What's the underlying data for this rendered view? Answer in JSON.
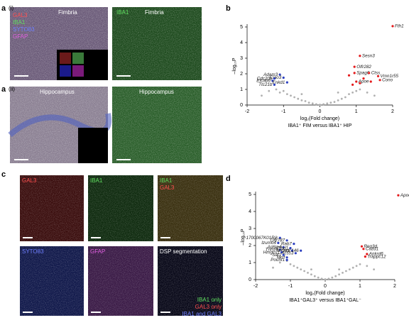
{
  "panels": {
    "a1": {
      "letter": "a",
      "sub": "(i)",
      "left_channels": [
        "GAL3",
        "IBA1",
        "SYTO83",
        "GFAP"
      ],
      "left_region": "Fimbria",
      "right_channel": "IBA1",
      "right_region": "Fimbria"
    },
    "a2": {
      "letter": "a",
      "sub": "(ii)",
      "left_region": "Hippocampus",
      "right_region": "Hippocampus"
    },
    "b": {
      "letter": "b"
    },
    "c": {
      "letter": "c",
      "tiles": [
        [
          "GAL3"
        ],
        [
          "IBA1"
        ],
        [
          "IBA1",
          "GAL3"
        ],
        [
          "SYTO83"
        ],
        [
          "GFAP"
        ],
        [
          "DSP segmentation"
        ]
      ],
      "legend": [
        "IBA1 only",
        "GAL3 only",
        "IBA1 and GAL3"
      ]
    },
    "d": {
      "letter": "d"
    }
  },
  "chart_data": [
    {
      "type": "scatter",
      "xlabel": "log₂(Fold change)",
      "ylabel": "–log₁₀P",
      "subtitle": "IBA1⁺ FIM versus IBA1⁺ HIP",
      "xlim": [
        -2,
        2
      ],
      "xticks": [
        -2,
        -1,
        0,
        1,
        2
      ],
      "ylim": [
        0,
        5
      ],
      "yticks": [
        0,
        1,
        2,
        3,
        4,
        5
      ],
      "series": [
        {
          "color": "#b0b0b0",
          "x": [
            -1.6,
            -1.4,
            -1.2,
            -1.1,
            -1.0,
            -0.9,
            -0.8,
            -0.7,
            -0.6,
            -0.5,
            -0.4,
            -0.3,
            -0.2,
            -0.1,
            0,
            0.1,
            0.2,
            0.3,
            0.4,
            0.5,
            0.6,
            0.7,
            0.8,
            0.9,
            1.0,
            1.1,
            1.3,
            1.5,
            0.5,
            -0.5
          ],
          "values": [
            0.6,
            0.9,
            1.0,
            0.8,
            0.9,
            0.7,
            0.6,
            0.5,
            0.4,
            0.3,
            0.25,
            0.15,
            0.1,
            0.05,
            0.02,
            0.05,
            0.1,
            0.15,
            0.2,
            0.3,
            0.4,
            0.5,
            0.7,
            0.8,
            0.9,
            1.0,
            0.8,
            0.6,
            0.8,
            0.7
          ]
        },
        {
          "color": "#e41a1c",
          "x": [
            2.0,
            1.1,
            0.95,
            0.95,
            1.35,
            1.6,
            1.65,
            1.0,
            0.9,
            1.1,
            1.2,
            1.4,
            0.8
          ],
          "values": [
            5.05,
            3.15,
            2.45,
            2.05,
            2.05,
            1.85,
            1.6,
            1.5,
            1.3,
            1.4,
            1.7,
            1.5,
            1.9
          ],
          "labels": [
            "Fth1",
            "Sesn3",
            "Olfr282",
            "Spag6",
            "Ctss",
            "Vmn1r55",
            "Cono",
            "Apoe",
            null,
            null,
            null,
            null,
            null
          ]
        },
        {
          "color": "#2b3fbf",
          "x": [
            -1.1,
            -1.0,
            -1.25,
            -1.3,
            -0.9,
            -1.25
          ],
          "values": [
            1.95,
            1.75,
            1.7,
            1.55,
            1.45,
            1.3
          ],
          "labels": [
            "Adam3",
            "Ciao3",
            "Cdc20b",
            "Efcab6",
            "Enkd1",
            "Ttc21b"
          ]
        }
      ]
    },
    {
      "type": "scatter",
      "xlabel": "log₂(Fold change)",
      "ylabel": "–log₁₀P",
      "subtitle": "IBA1⁺GAL3⁺ versus IBA1⁺GAL⁻",
      "xlim": [
        -2,
        2
      ],
      "xticks": [
        -2,
        -1,
        0,
        1,
        2
      ],
      "ylim": [
        0,
        5
      ],
      "yticks": [
        0,
        1,
        2,
        3,
        4,
        5
      ],
      "series": [
        {
          "color": "#b0b0b0",
          "x": [
            -1.5,
            -1.3,
            -1.1,
            -1.0,
            -0.9,
            -0.8,
            -0.7,
            -0.6,
            -0.5,
            -0.4,
            -0.3,
            -0.2,
            -0.1,
            0,
            0.1,
            0.2,
            0.3,
            0.4,
            0.5,
            0.6,
            0.7,
            0.8,
            0.9,
            1.0,
            1.2,
            1.4,
            -0.4,
            0.4
          ],
          "values": [
            0.7,
            1.0,
            1.1,
            0.9,
            0.8,
            0.7,
            0.6,
            0.5,
            0.4,
            0.3,
            0.2,
            0.12,
            0.05,
            0.02,
            0.05,
            0.12,
            0.2,
            0.3,
            0.4,
            0.5,
            0.6,
            0.7,
            0.8,
            0.9,
            0.8,
            0.6,
            0.6,
            0.6
          ]
        },
        {
          "color": "#e41a1c",
          "x": [
            2.1,
            1.05,
            1.1,
            1.2,
            1.15
          ],
          "values": [
            4.95,
            1.95,
            1.8,
            1.5,
            1.35
          ],
          "labels": [
            "Apoe",
            "Reg3d",
            "Cuzd1",
            "Ankrd6",
            "Trappc12"
          ]
        },
        {
          "color": "#2b3fbf",
          "x": [
            -1.3,
            -1.1,
            -1.35,
            -0.9,
            -1.2,
            -1.0,
            -1.3,
            -0.95,
            -0.7,
            -1.25,
            -0.85,
            -1.2,
            -1.1,
            -1.1
          ],
          "values": [
            2.45,
            2.3,
            2.15,
            2.1,
            1.9,
            1.85,
            1.75,
            1.7,
            1.7,
            1.6,
            1.55,
            1.45,
            1.3,
            1.15
          ],
          "labels": [
            "1700067K01Rik",
            "Olfr787",
            "Izumo4",
            "Rab7",
            "Arl6ip4",
            "Cfhd1",
            "Tnfsf4",
            "Wdr41",
            "Ccdc146",
            "Hmgcs1",
            "Acss3",
            "Sat1",
            "Mrrf",
            "Pou5f1"
          ]
        }
      ]
    }
  ]
}
